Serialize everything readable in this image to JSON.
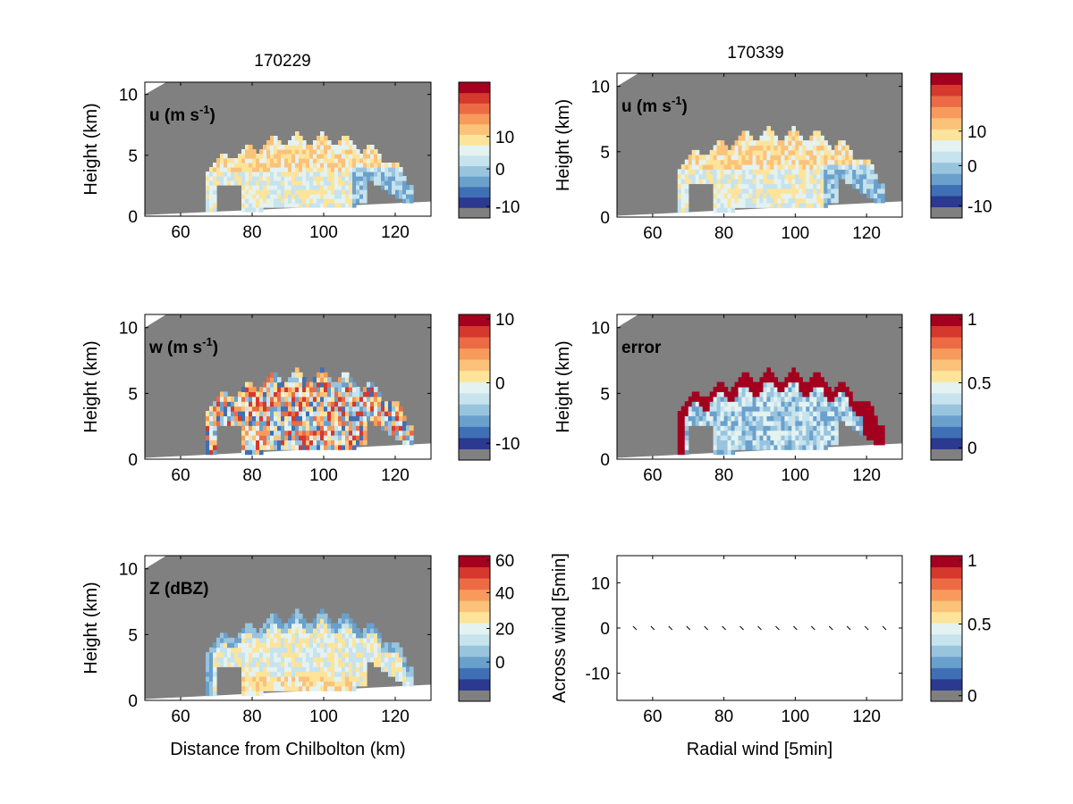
{
  "titles": {
    "left": "170229",
    "right": "170339"
  },
  "colors": {
    "background": "#ffffff",
    "field_gray": "#808080",
    "colormap": [
      "#808080",
      "#2b3990",
      "#3f6fb5",
      "#6aa0cc",
      "#98c4de",
      "#c6e3ee",
      "#e4f2f1",
      "#fde49a",
      "#fbc27a",
      "#f79a5b",
      "#ec6b45",
      "#d6382e",
      "#a3001f"
    ]
  },
  "chart_data": [
    {
      "id": "u_170229",
      "type": "heatmap",
      "title": "170229",
      "label": "u (m s",
      "label_sup": "-1",
      "label_end": ")",
      "xlabel": "",
      "ylabel": "Height (km)",
      "xlim": [
        50,
        130
      ],
      "ylim": [
        0,
        11
      ],
      "xticks": [
        "60",
        "80",
        "100",
        "120"
      ],
      "yticks": [
        "0",
        "5",
        "10"
      ],
      "colorbar": {
        "levels": 13,
        "ticks": [
          {
            "label": "10",
            "level": 7.8
          },
          {
            "label": "0",
            "level": 4.7
          },
          {
            "label": "-10",
            "level": 1.1
          }
        ]
      }
    },
    {
      "id": "u_170339",
      "type": "heatmap",
      "title": "170339",
      "label": "u (m s",
      "label_sup": "-1",
      "label_end": ")",
      "xlabel": "",
      "ylabel": "Height (km)",
      "xlim": [
        50,
        130
      ],
      "ylim": [
        0,
        11
      ],
      "xticks": [
        "60",
        "80",
        "100",
        "120"
      ],
      "yticks": [
        "0",
        "5",
        "10"
      ],
      "colorbar": {
        "levels": 13,
        "ticks": [
          {
            "label": "10",
            "level": 7.8
          },
          {
            "label": "0",
            "level": 4.7
          },
          {
            "label": "-10",
            "level": 1.1
          }
        ]
      }
    },
    {
      "id": "w_170229",
      "type": "heatmap",
      "title": "",
      "label": "w (m s",
      "label_sup": "-1",
      "label_end": ")",
      "xlabel": "",
      "ylabel": "Height (km)",
      "xlim": [
        50,
        130
      ],
      "ylim": [
        0,
        11
      ],
      "xticks": [
        "60",
        "80",
        "100",
        "120"
      ],
      "yticks": [
        "0",
        "5",
        "10"
      ],
      "colorbar": {
        "levels": 13,
        "ticks": [
          {
            "label": "10",
            "level": 12.6
          },
          {
            "label": "0",
            "level": 6.9
          },
          {
            "label": "-10",
            "level": 1.5
          }
        ]
      }
    },
    {
      "id": "error_170339",
      "type": "heatmap",
      "title": "",
      "label": "error",
      "label_sup": "",
      "label_end": "",
      "xlabel": "",
      "ylabel": "Height (km)",
      "xlim": [
        50,
        130
      ],
      "ylim": [
        0,
        11
      ],
      "xticks": [
        "60",
        "80",
        "100",
        "120"
      ],
      "yticks": [
        "0",
        "5",
        "10"
      ],
      "colorbar": {
        "levels": 13,
        "ticks": [
          {
            "label": "1",
            "level": 12.6
          },
          {
            "label": "0.5",
            "level": 6.9
          },
          {
            "label": "0",
            "level": 1.1
          }
        ]
      }
    },
    {
      "id": "z_170229",
      "type": "heatmap",
      "title": "",
      "label": "Z (dBZ)",
      "label_sup": "",
      "label_end": "",
      "xlabel": "Distance from Chilbolton (km)",
      "ylabel": "Height (km)",
      "xlim": [
        50,
        130
      ],
      "ylim": [
        0,
        11
      ],
      "xticks": [
        "60",
        "80",
        "100",
        "120"
      ],
      "yticks": [
        "0",
        "5",
        "10"
      ],
      "colorbar": {
        "levels": 13,
        "ticks": [
          {
            "label": "60",
            "level": 12.6
          },
          {
            "label": "40",
            "level": 9.7
          },
          {
            "label": "20",
            "level": 6.5
          },
          {
            "label": "0",
            "level": 3.5
          }
        ]
      }
    },
    {
      "id": "wind_vectors",
      "type": "scatter",
      "title": "",
      "label": "",
      "label_sup": "",
      "label_end": "",
      "xlabel": "Radial wind [5min]",
      "ylabel": "Across wind [5min]",
      "xlim": [
        50,
        130
      ],
      "ylim": [
        -16,
        16
      ],
      "xticks": [
        "60",
        "80",
        "100",
        "120"
      ],
      "yticks": [
        "-10",
        "0",
        "10"
      ],
      "x": [
        55,
        60,
        65,
        70,
        75,
        80,
        85,
        90,
        95,
        100,
        105,
        110,
        115,
        120,
        125
      ],
      "y": [
        0,
        0,
        0,
        0,
        0,
        0,
        0,
        0,
        0,
        0,
        0,
        0,
        0,
        0,
        0
      ],
      "colorbar": {
        "levels": 13,
        "ticks": [
          {
            "label": "1",
            "level": 12.6
          },
          {
            "label": "0.5",
            "level": 6.9
          },
          {
            "label": "0",
            "level": 0.5
          }
        ]
      }
    }
  ]
}
